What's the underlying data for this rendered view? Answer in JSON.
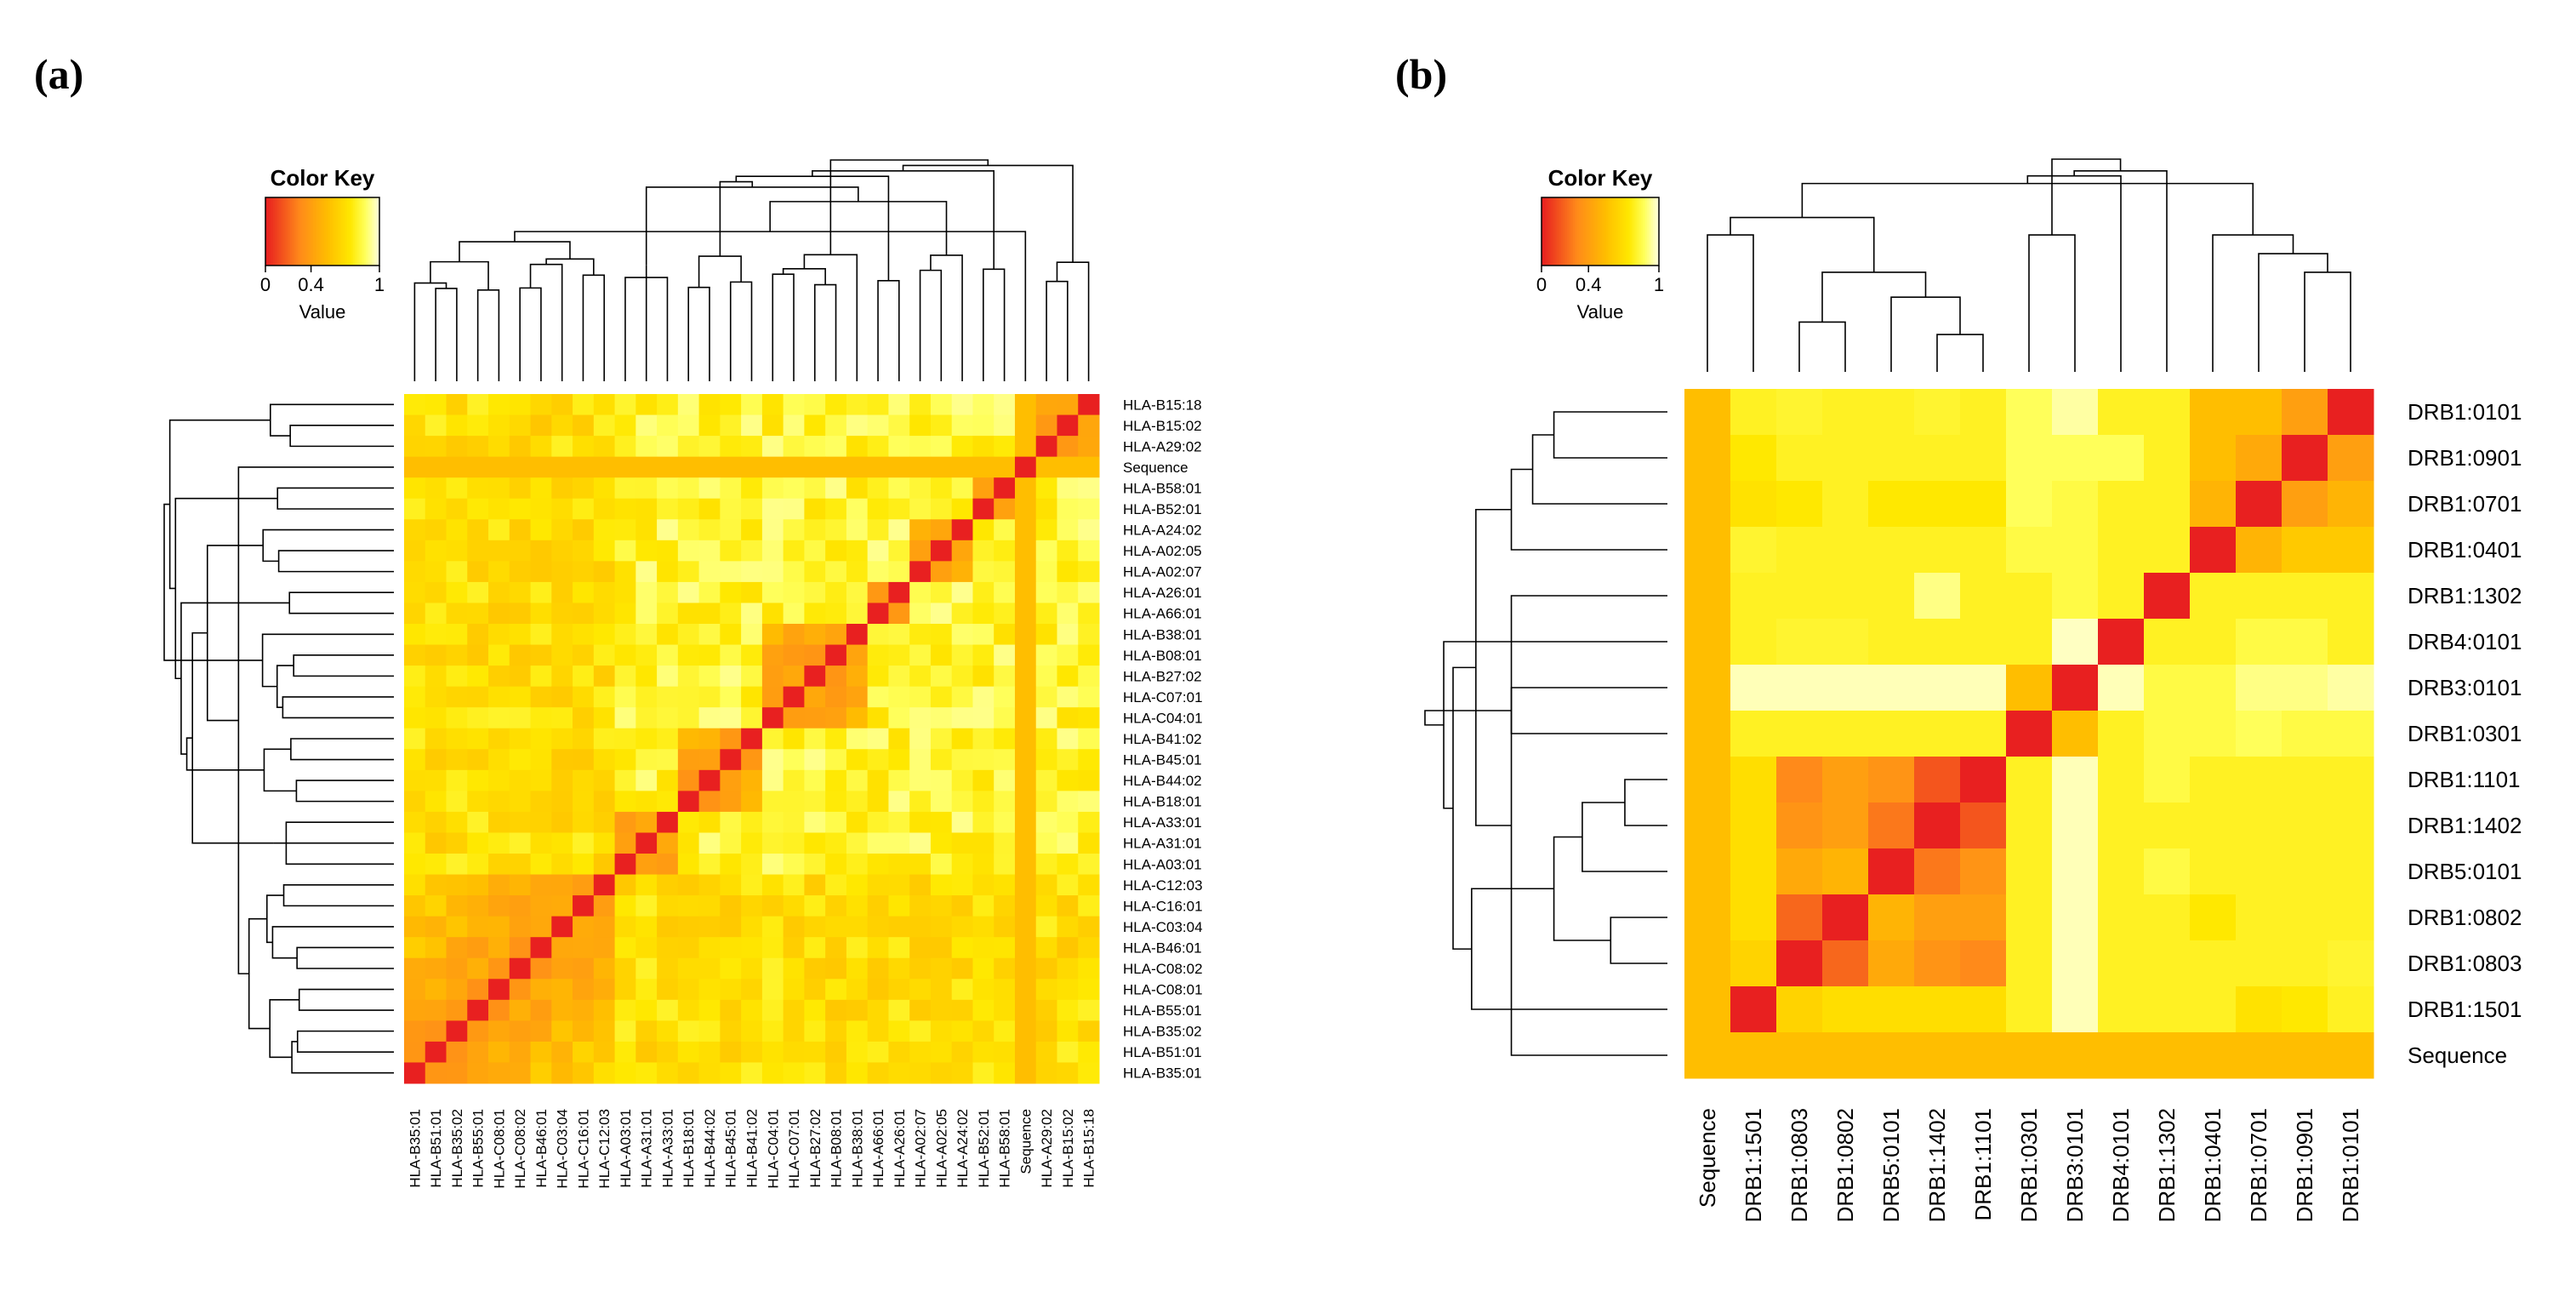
{
  "figure": {
    "panel_a_label": "(a)",
    "panel_b_label": "(b)"
  },
  "chart_data": [
    {
      "type": "heatmap",
      "panel": "(a)",
      "title": "",
      "color_key": {
        "title": "Color Key",
        "xlabel": "Value",
        "ticks": [
          "0",
          "0.4",
          "1"
        ],
        "range": [
          0,
          1
        ],
        "colors": [
          "#e82020",
          "#ff8a1a",
          "#ffd500",
          "#ffff66",
          "#ffffd0"
        ]
      },
      "rows_top_to_bottom": [
        "HLA-B15:18",
        "HLA-B15:02",
        "HLA-A29:02",
        "Sequence",
        "HLA-B58:01",
        "HLA-B52:01",
        "HLA-A24:02",
        "HLA-A02:05",
        "HLA-A02:07",
        "HLA-A26:01",
        "HLA-A66:01",
        "HLA-B38:01",
        "HLA-B08:01",
        "HLA-B27:02",
        "HLA-C07:01",
        "HLA-C04:01",
        "HLA-B41:02",
        "HLA-B45:01",
        "HLA-B44:02",
        "HLA-B18:01",
        "HLA-A33:01",
        "HLA-A31:01",
        "HLA-A03:01",
        "HLA-C12:03",
        "HLA-C16:01",
        "HLA-C03:04",
        "HLA-B46:01",
        "HLA-C08:02",
        "HLA-C08:01",
        "HLA-B55:01",
        "HLA-B35:02",
        "HLA-B51:01",
        "HLA-B35:01"
      ],
      "columns_left_to_right": [
        "HLA-B35:01",
        "HLA-B51:01",
        "HLA-B35:02",
        "HLA-B55:01",
        "HLA-C08:01",
        "HLA-C08:02",
        "HLA-B46:01",
        "HLA-C03:04",
        "HLA-C16:01",
        "HLA-C12:03",
        "HLA-A03:01",
        "HLA-A31:01",
        "HLA-A33:01",
        "HLA-B18:01",
        "HLA-B44:02",
        "HLA-B45:01",
        "HLA-B41:02",
        "HLA-C04:01",
        "HLA-C07:01",
        "HLA-B27:02",
        "HLA-B08:01",
        "HLA-B38:01",
        "HLA-A66:01",
        "HLA-A26:01",
        "HLA-A02:07",
        "HLA-A02:05",
        "HLA-A24:02",
        "HLA-B52:01",
        "HLA-B58:01",
        "Sequence",
        "HLA-A29:02",
        "HLA-B15:02",
        "HLA-B15:18"
      ],
      "clusters_by_column_index": [
        [
          0,
          9
        ],
        [
          10,
          12
        ],
        [
          13,
          16
        ],
        [
          17,
          21
        ],
        [
          22,
          23
        ],
        [
          24,
          26
        ],
        [
          27,
          28
        ],
        [
          29,
          29
        ],
        [
          30,
          32
        ]
      ],
      "cluster_strength": {
        "within_cluster": 0.3,
        "diagonal": 0.0,
        "sequence_row_col": 0.55,
        "between_clusters": 0.82
      }
    },
    {
      "type": "heatmap",
      "panel": "(b)",
      "title": "",
      "color_key": {
        "title": "Color Key",
        "xlabel": "Value",
        "ticks": [
          "0",
          "0.4",
          "1"
        ],
        "range": [
          0,
          1
        ],
        "colors": [
          "#e82020",
          "#ff8a1a",
          "#ffd500",
          "#ffff66",
          "#ffffd0"
        ]
      },
      "rows_top_to_bottom": [
        "DRB1:0101",
        "DRB1:0901",
        "DRB1:0701",
        "DRB1:0401",
        "DRB1:1302",
        "DRB4:0101",
        "DRB3:0101",
        "DRB1:0301",
        "DRB1:1101",
        "DRB1:1402",
        "DRB5:0101",
        "DRB1:0802",
        "DRB1:0803",
        "DRB1:1501",
        "Sequence"
      ],
      "columns_left_to_right": [
        "Sequence",
        "DRB1:1501",
        "DRB1:0803",
        "DRB1:0802",
        "DRB5:0101",
        "DRB1:1402",
        "DRB1:1101",
        "DRB1:0301",
        "DRB3:0101",
        "DRB4:0101",
        "DRB1:1302",
        "DRB1:0401",
        "DRB1:0701",
        "DRB1:0901",
        "DRB1:0101"
      ],
      "values_rows_top_to_bottom": [
        [
          0.55,
          0.8,
          0.82,
          0.8,
          0.8,
          0.82,
          0.8,
          0.88,
          0.95,
          0.8,
          0.8,
          0.55,
          0.55,
          0.4,
          0.0
        ],
        [
          0.55,
          0.75,
          0.8,
          0.8,
          0.8,
          0.8,
          0.8,
          0.88,
          0.88,
          0.88,
          0.8,
          0.55,
          0.45,
          0.0,
          0.4
        ],
        [
          0.55,
          0.72,
          0.75,
          0.8,
          0.75,
          0.75,
          0.75,
          0.88,
          0.85,
          0.8,
          0.8,
          0.5,
          0.0,
          0.4,
          0.5
        ],
        [
          0.55,
          0.82,
          0.8,
          0.8,
          0.8,
          0.8,
          0.8,
          0.85,
          0.85,
          0.8,
          0.8,
          0.0,
          0.5,
          0.6,
          0.6
        ],
        [
          0.55,
          0.8,
          0.8,
          0.8,
          0.8,
          0.92,
          0.8,
          0.8,
          0.85,
          0.8,
          0.0,
          0.8,
          0.8,
          0.8,
          0.8
        ],
        [
          0.55,
          0.8,
          0.82,
          0.82,
          0.8,
          0.8,
          0.8,
          0.8,
          0.98,
          0.0,
          0.8,
          0.8,
          0.85,
          0.85,
          0.8
        ],
        [
          0.55,
          0.97,
          0.97,
          0.97,
          0.97,
          0.97,
          0.97,
          0.55,
          0.0,
          0.97,
          0.85,
          0.85,
          0.92,
          0.92,
          0.95
        ],
        [
          0.55,
          0.8,
          0.8,
          0.8,
          0.8,
          0.8,
          0.8,
          0.0,
          0.55,
          0.8,
          0.85,
          0.85,
          0.88,
          0.85,
          0.85
        ],
        [
          0.55,
          0.7,
          0.3,
          0.4,
          0.35,
          0.15,
          0.0,
          0.8,
          0.97,
          0.8,
          0.85,
          0.8,
          0.8,
          0.8,
          0.8
        ],
        [
          0.55,
          0.7,
          0.35,
          0.4,
          0.25,
          0.0,
          0.15,
          0.8,
          0.97,
          0.8,
          0.8,
          0.8,
          0.8,
          0.8,
          0.8
        ],
        [
          0.55,
          0.7,
          0.45,
          0.5,
          0.0,
          0.25,
          0.35,
          0.8,
          0.97,
          0.8,
          0.85,
          0.8,
          0.8,
          0.8,
          0.8
        ],
        [
          0.55,
          0.7,
          0.2,
          0.0,
          0.5,
          0.4,
          0.4,
          0.8,
          0.97,
          0.8,
          0.8,
          0.75,
          0.8,
          0.8,
          0.8
        ],
        [
          0.55,
          0.65,
          0.0,
          0.2,
          0.45,
          0.35,
          0.3,
          0.8,
          0.97,
          0.8,
          0.8,
          0.8,
          0.8,
          0.8,
          0.82
        ],
        [
          0.55,
          0.0,
          0.65,
          0.7,
          0.7,
          0.7,
          0.7,
          0.8,
          0.97,
          0.8,
          0.8,
          0.8,
          0.72,
          0.75,
          0.8
        ],
        [
          0.55,
          0.55,
          0.55,
          0.55,
          0.55,
          0.55,
          0.55,
          0.55,
          0.55,
          0.55,
          0.55,
          0.55,
          0.55,
          0.55,
          0.55
        ]
      ]
    }
  ]
}
